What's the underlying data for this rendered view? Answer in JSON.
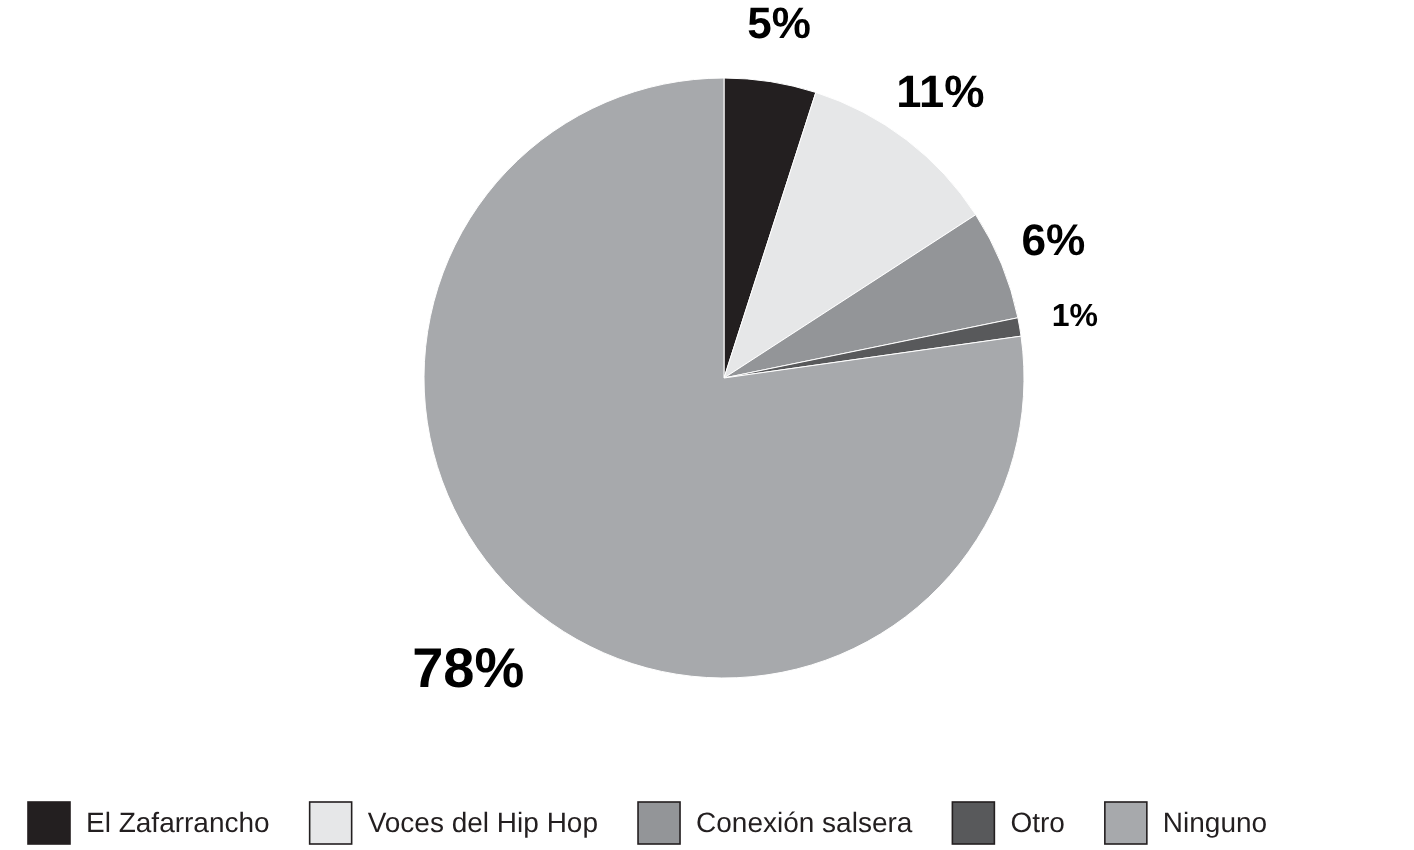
{
  "chart_data": {
    "type": "pie",
    "categories": [
      "El Zafarrancho",
      "Voces del Hip Hop",
      "Conexión salsera",
      "Otro",
      "Ninguno"
    ],
    "values": [
      5,
      11,
      6,
      1,
      78
    ],
    "colors": [
      "#231f20",
      "#e6e7e8",
      "#939598",
      "#58595b",
      "#a7a9ac"
    ],
    "value_labels": [
      "5%",
      "11%",
      "6%",
      "1%",
      "78%"
    ],
    "legend": "bottom"
  }
}
